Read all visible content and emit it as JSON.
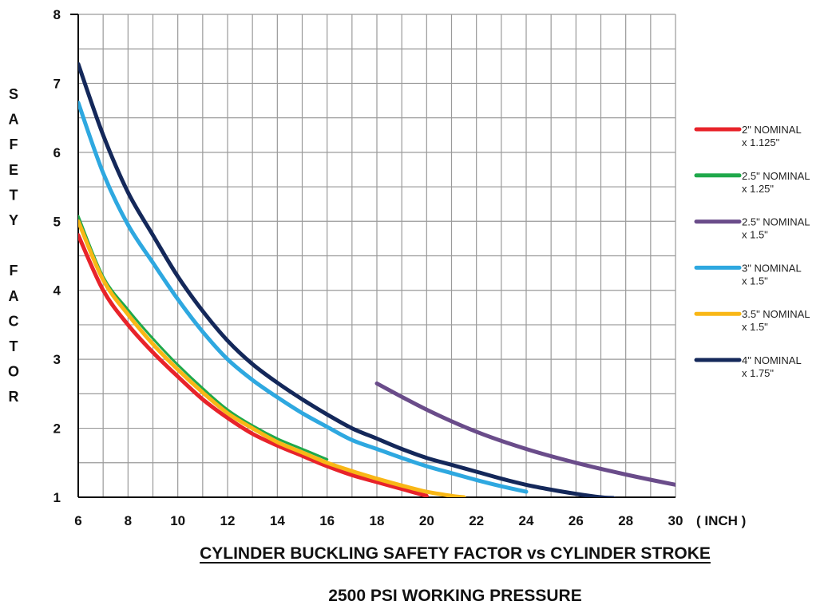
{
  "chart_data": {
    "type": "line",
    "title": "CYLINDER BUCKLING SAFETY FACTOR vs CYLINDER STROKE",
    "subtitle": "2500 PSI WORKING PRESSURE",
    "xlabel": "( INCH )",
    "ylabel": "SAFETY FACTOR",
    "xlim": [
      6,
      30
    ],
    "ylim": [
      1,
      8
    ],
    "x_ticks": [
      "6",
      "8",
      "10",
      "12",
      "14",
      "16",
      "18",
      "20",
      "22",
      "24",
      "26",
      "28",
      "30"
    ],
    "y_ticks": [
      "1",
      "2",
      "3",
      "4",
      "5",
      "6",
      "7",
      "8"
    ],
    "grid": true,
    "legend_position": "right",
    "series": [
      {
        "name": "2\" NOMINAL",
        "name2": "x 1.125\"",
        "color": "#e8232a",
        "x": [
          6,
          7,
          8,
          9,
          10,
          11,
          12,
          13,
          14,
          15,
          16,
          17,
          18,
          19,
          20
        ],
        "y": [
          4.8,
          4.0,
          3.5,
          3.1,
          2.75,
          2.42,
          2.15,
          1.92,
          1.75,
          1.6,
          1.45,
          1.32,
          1.22,
          1.12,
          1.02
        ]
      },
      {
        "name": "2.5\" NOMINAL",
        "name2": "x 1.25\"",
        "color": "#1fa84a",
        "x": [
          6,
          7,
          8,
          9,
          10,
          11,
          12,
          13,
          14,
          15,
          16
        ],
        "y": [
          5.08,
          4.2,
          3.72,
          3.3,
          2.92,
          2.58,
          2.27,
          2.04,
          1.85,
          1.7,
          1.55
        ]
      },
      {
        "name": "2.5\" NOMINAL",
        "name2": "x 1.5\"",
        "color": "#6a4c8a",
        "x": [
          18,
          20,
          22,
          24,
          26,
          28,
          30
        ],
        "y": [
          2.65,
          2.27,
          1.95,
          1.7,
          1.5,
          1.33,
          1.18
        ]
      },
      {
        "name": "3\" NOMINAL",
        "name2": "x 1.5\"",
        "color": "#2ea8e0",
        "x": [
          6,
          7,
          8,
          9,
          10,
          11,
          12,
          13,
          14,
          15,
          16,
          17,
          18,
          19,
          20,
          21,
          22,
          23,
          24
        ],
        "y": [
          6.72,
          5.7,
          4.95,
          4.4,
          3.87,
          3.4,
          3.0,
          2.7,
          2.45,
          2.22,
          2.02,
          1.83,
          1.7,
          1.57,
          1.45,
          1.35,
          1.25,
          1.16,
          1.08
        ]
      },
      {
        "name": "3.5\" NOMINAL",
        "name2": "x 1.5\"",
        "color": "#f9b716",
        "x": [
          6,
          7,
          8,
          9,
          10,
          11,
          12,
          13,
          14,
          15,
          16,
          17,
          18,
          19,
          20,
          21,
          21.5
        ],
        "y": [
          5.0,
          4.15,
          3.65,
          3.22,
          2.85,
          2.52,
          2.22,
          2.0,
          1.8,
          1.65,
          1.5,
          1.38,
          1.27,
          1.17,
          1.08,
          1.02,
          1.0
        ]
      },
      {
        "name": "4\" NOMINAL",
        "name2": "x 1.75\"",
        "color": "#14285a",
        "x": [
          6,
          7,
          8,
          9,
          10,
          11,
          12,
          13,
          14,
          15,
          16,
          17,
          18,
          19,
          20,
          21,
          22,
          23,
          24,
          25,
          26,
          27,
          27.5
        ],
        "y": [
          7.28,
          6.25,
          5.42,
          4.8,
          4.2,
          3.7,
          3.27,
          2.93,
          2.66,
          2.42,
          2.2,
          2.0,
          1.85,
          1.7,
          1.57,
          1.47,
          1.37,
          1.27,
          1.18,
          1.11,
          1.05,
          1.0,
          0.99
        ]
      }
    ]
  }
}
